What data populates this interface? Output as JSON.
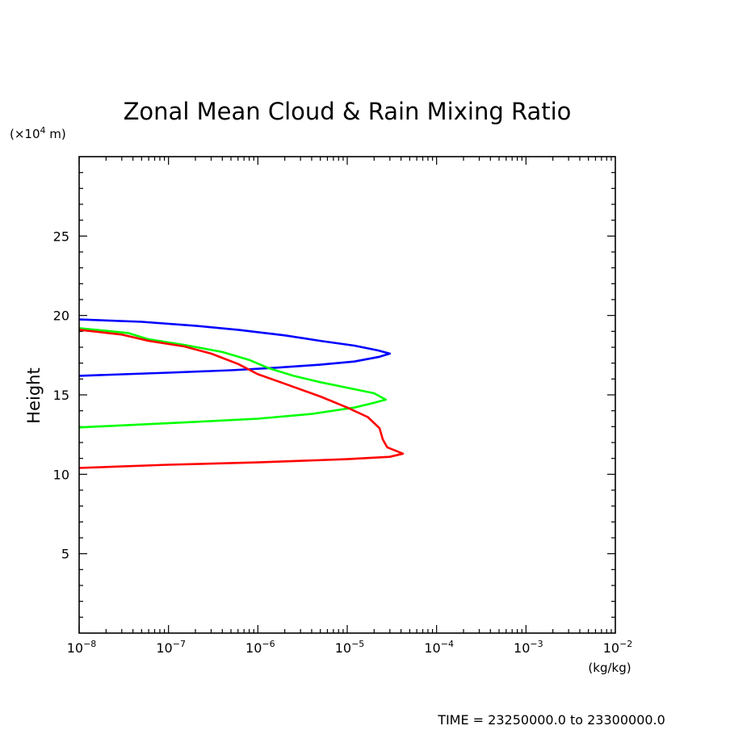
{
  "chart_data": {
    "type": "line",
    "title": "Zonal Mean Cloud & Rain Mixing Ratio",
    "ylabel": "Height",
    "yunit": "(×10",
    "yunit_exp": "4",
    "yunit_tail": " m)",
    "xunit": "(kg/kg)",
    "xscale": "log",
    "xlim": [
      1e-08,
      0.01
    ],
    "ylim": [
      0,
      30
    ],
    "yticks": [
      5,
      10,
      15,
      20,
      25
    ],
    "ytick_labels": [
      "5",
      "10",
      "15",
      "20",
      "25"
    ],
    "xticks": [
      {
        "value": 1e-08,
        "base": "10",
        "exp": "−8"
      },
      {
        "value": 1e-07,
        "base": "10",
        "exp": "−7"
      },
      {
        "value": 1e-06,
        "base": "10",
        "exp": "−6"
      },
      {
        "value": 1e-05,
        "base": "10",
        "exp": "−5"
      },
      {
        "value": 0.0001,
        "base": "10",
        "exp": "−4"
      },
      {
        "value": 0.001,
        "base": "10",
        "exp": "−3"
      },
      {
        "value": 0.01,
        "base": "10",
        "exp": "−2"
      }
    ],
    "footer": "TIME = 23250000.0 to 23300000.0",
    "series": [
      {
        "color": "#0000ff",
        "points": [
          [
            1e-08,
            19.75
          ],
          [
            5e-08,
            19.6
          ],
          [
            2e-07,
            19.35
          ],
          [
            6e-07,
            19.1
          ],
          [
            2e-06,
            18.75
          ],
          [
            5e-06,
            18.4
          ],
          [
            1.2e-05,
            18.1
          ],
          [
            2.2e-05,
            17.8
          ],
          [
            3e-05,
            17.6
          ],
          [
            2.3e-05,
            17.4
          ],
          [
            1.2e-05,
            17.1
          ],
          [
            5e-06,
            16.9
          ],
          [
            1.5e-06,
            16.7
          ],
          [
            5e-07,
            16.55
          ],
          [
            1e-07,
            16.4
          ],
          [
            1e-08,
            16.2
          ]
        ]
      },
      {
        "color": "#00ff00",
        "points": [
          [
            1e-08,
            19.2
          ],
          [
            3.5e-08,
            18.9
          ],
          [
            6e-08,
            18.5
          ],
          [
            1.5e-07,
            18.15
          ],
          [
            4e-07,
            17.7
          ],
          [
            8e-07,
            17.2
          ],
          [
            1.3e-06,
            16.7
          ],
          [
            2.5e-06,
            16.2
          ],
          [
            5e-06,
            15.8
          ],
          [
            1e-05,
            15.45
          ],
          [
            2e-05,
            15.1
          ],
          [
            2.7e-05,
            14.7
          ],
          [
            2e-05,
            14.5
          ],
          [
            1.2e-05,
            14.2
          ],
          [
            4e-06,
            13.8
          ],
          [
            1e-06,
            13.5
          ],
          [
            2e-07,
            13.3
          ],
          [
            1e-08,
            12.95
          ]
        ]
      },
      {
        "color": "#ff0000",
        "points": [
          [
            1e-08,
            19.1
          ],
          [
            3e-08,
            18.8
          ],
          [
            6e-08,
            18.4
          ],
          [
            1.5e-07,
            18.05
          ],
          [
            3e-07,
            17.6
          ],
          [
            6e-07,
            16.95
          ],
          [
            1e-06,
            16.3
          ],
          [
            2e-06,
            15.7
          ],
          [
            5e-06,
            14.9
          ],
          [
            1e-05,
            14.2
          ],
          [
            1.7e-05,
            13.6
          ],
          [
            2.3e-05,
            12.9
          ],
          [
            2.5e-05,
            12.2
          ],
          [
            2.8e-05,
            11.7
          ],
          [
            4.2e-05,
            11.3
          ],
          [
            3e-05,
            11.1
          ],
          [
            1e-05,
            10.95
          ],
          [
            1e-06,
            10.75
          ],
          [
            1e-07,
            10.6
          ],
          [
            1e-08,
            10.4
          ]
        ]
      }
    ]
  }
}
